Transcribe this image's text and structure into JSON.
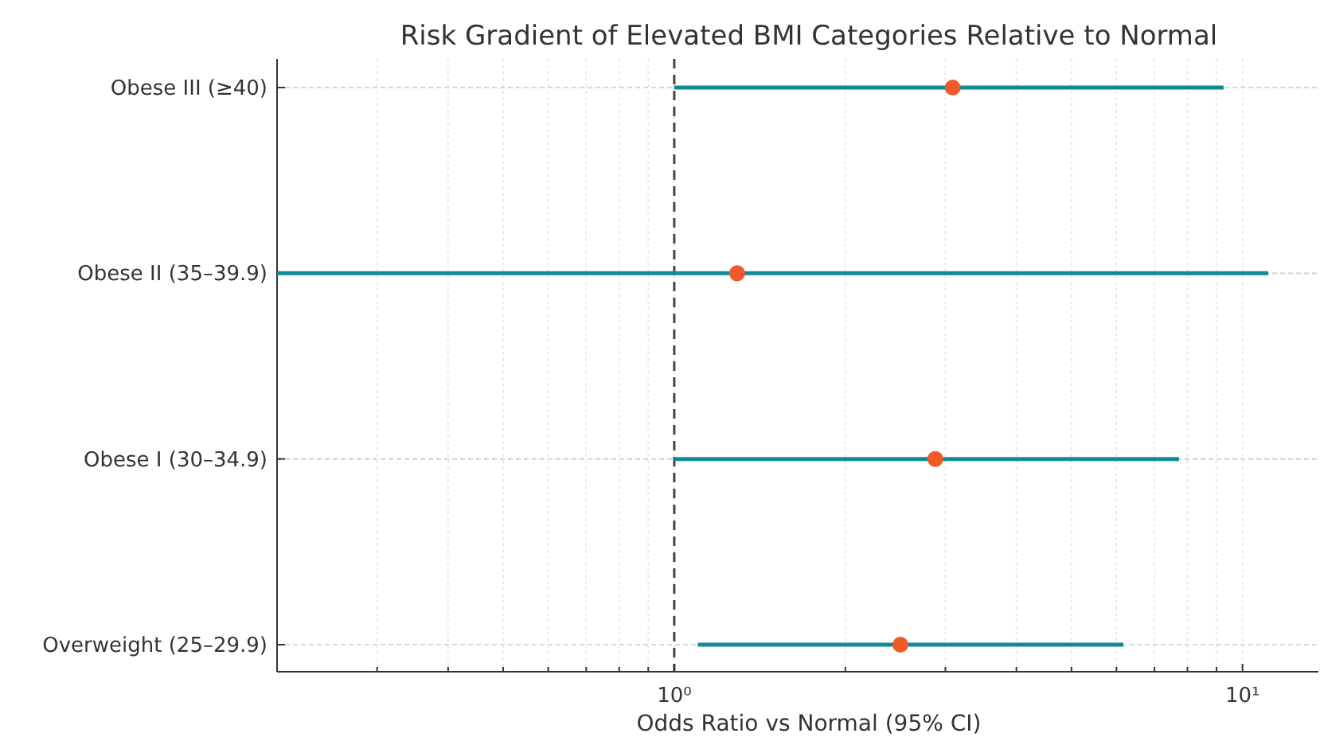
{
  "chart_data": {
    "type": "scatter",
    "orientation": "horizontal",
    "title": "Risk Gradient of Elevated BMI Categories Relative to Normal",
    "xlabel": "Odds Ratio vs Normal (95% CI)",
    "categories": [
      "Obese III (≥40)",
      "Obese II (35–39.9)",
      "Obese I (30–34.9)",
      "Overweight (25–29.9)"
    ],
    "series": [
      {
        "color": "#108b96",
        "colors": [
          "#f05a28",
          "#f05a28",
          "#f05a28",
          "#f05a28"
        ],
        "values": [
          3.09,
          1.29,
          2.88,
          2.5
        ],
        "errors": [
          [
            1.0,
            9.26
          ],
          [
            0.2,
            11.1
          ],
          [
            1.0,
            7.73
          ],
          [
            1.1,
            6.17
          ]
        ]
      }
    ],
    "log": "x",
    "xlim": [
      0.2,
      13.6
    ],
    "xticks": [
      {
        "value": 0.2,
        "label": null
      },
      {
        "value": 0.3,
        "label": null
      },
      {
        "value": 0.4,
        "label": null
      },
      {
        "value": 0.5,
        "label": null
      },
      {
        "value": 0.6,
        "label": null
      },
      {
        "value": 0.7,
        "label": null
      },
      {
        "value": 0.8,
        "label": null
      },
      {
        "value": 0.9,
        "label": null
      },
      {
        "value": 1,
        "label": "10⁰"
      },
      {
        "value": 2,
        "label": null
      },
      {
        "value": 3,
        "label": null
      },
      {
        "value": 4,
        "label": null
      },
      {
        "value": 5,
        "label": null
      },
      {
        "value": 6,
        "label": null
      },
      {
        "value": 7,
        "label": null
      },
      {
        "value": 8,
        "label": null
      },
      {
        "value": 9,
        "label": null
      },
      {
        "value": 10,
        "label": "10¹"
      }
    ],
    "ref_lines": [
      {
        "axis": "x",
        "value": 1,
        "color": "#444444",
        "line_style": "dashed"
      }
    ],
    "grid": true,
    "marker": "circle"
  }
}
